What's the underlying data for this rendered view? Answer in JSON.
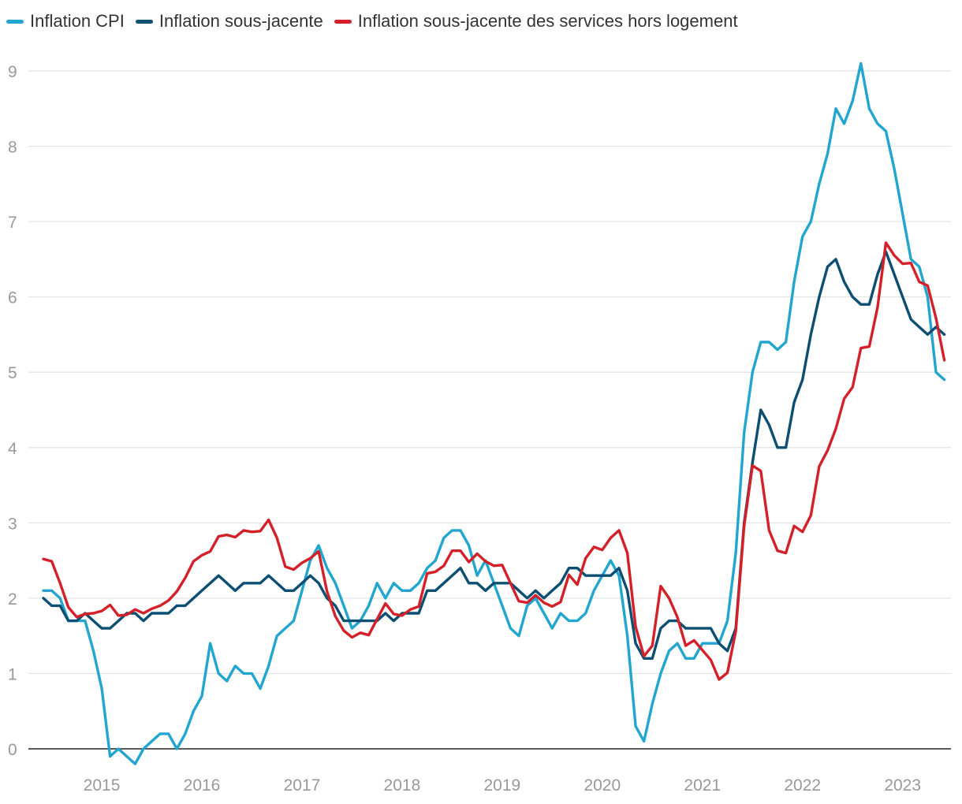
{
  "legend": [
    {
      "label": "Inflation CPI",
      "color": "#22A5CF"
    },
    {
      "label": "Inflation sous-jacente",
      "color": "#0D4E73"
    },
    {
      "label": "Inflation sous-jacente des services hors logement",
      "color": "#D42028"
    }
  ],
  "chart_data": {
    "type": "line",
    "x_start": "2014-06",
    "x_step": "month",
    "xlim": [
      "2014-06",
      "2023-05"
    ],
    "ylim": [
      0,
      9
    ],
    "yticks": [
      0,
      1,
      2,
      3,
      4,
      5,
      6,
      7,
      8,
      9
    ],
    "xticks": [
      "2015",
      "2016",
      "2017",
      "2018",
      "2019",
      "2020",
      "2021",
      "2022",
      "2023"
    ],
    "grid": true,
    "legend_position": "top-left",
    "series": [
      {
        "name": "Inflation CPI",
        "color": "#22A5CF",
        "start": "2014-06",
        "values": [
          2.1,
          2.1,
          2.0,
          1.7,
          1.7,
          1.7,
          1.3,
          0.8,
          -0.1,
          0.0,
          -0.1,
          -0.2,
          0.0,
          0.1,
          0.2,
          0.2,
          0.0,
          0.2,
          0.5,
          0.7,
          1.4,
          1.0,
          0.9,
          1.1,
          1.0,
          1.0,
          0.8,
          1.1,
          1.5,
          1.6,
          1.7,
          2.1,
          2.5,
          2.7,
          2.4,
          2.2,
          1.9,
          1.6,
          1.7,
          1.9,
          2.2,
          2.0,
          2.2,
          2.1,
          2.1,
          2.2,
          2.4,
          2.5,
          2.8,
          2.9,
          2.9,
          2.7,
          2.3,
          2.5,
          2.2,
          1.9,
          1.6,
          1.5,
          1.9,
          2.0,
          1.8,
          1.6,
          1.8,
          1.7,
          1.7,
          1.8,
          2.1,
          2.3,
          2.5,
          2.3,
          1.5,
          0.3,
          0.1,
          0.6,
          1.0,
          1.3,
          1.4,
          1.2,
          1.2,
          1.4,
          1.4,
          1.4,
          1.7,
          2.6,
          4.2,
          5.0,
          5.4,
          5.4,
          5.3,
          5.4,
          6.2,
          6.8,
          7.0,
          7.5,
          7.9,
          8.5,
          8.3,
          8.6,
          9.1,
          8.5,
          8.3,
          8.2,
          7.7,
          7.1,
          6.5,
          6.4,
          6.0,
          5.0,
          4.9
        ]
      },
      {
        "name": "Inflation sous-jacente",
        "color": "#0D4E73",
        "start": "2014-06",
        "values": [
          2.0,
          1.9,
          1.9,
          1.7,
          1.7,
          1.8,
          1.7,
          1.6,
          1.6,
          1.7,
          1.8,
          1.8,
          1.7,
          1.8,
          1.8,
          1.8,
          1.9,
          1.9,
          2.0,
          2.1,
          2.2,
          2.3,
          2.2,
          2.1,
          2.2,
          2.2,
          2.2,
          2.3,
          2.2,
          2.1,
          2.1,
          2.2,
          2.3,
          2.2,
          2.0,
          1.9,
          1.7,
          1.7,
          1.7,
          1.7,
          1.7,
          1.8,
          1.7,
          1.8,
          1.8,
          1.8,
          2.1,
          2.1,
          2.2,
          2.3,
          2.4,
          2.2,
          2.2,
          2.1,
          2.2,
          2.2,
          2.2,
          2.1,
          2.0,
          2.1,
          2.0,
          2.1,
          2.2,
          2.4,
          2.4,
          2.3,
          2.3,
          2.3,
          2.3,
          2.4,
          2.1,
          1.4,
          1.2,
          1.2,
          1.6,
          1.7,
          1.7,
          1.6,
          1.6,
          1.6,
          1.6,
          1.4,
          1.3,
          1.6,
          3.0,
          3.8,
          4.5,
          4.3,
          4.0,
          4.0,
          4.6,
          4.9,
          5.5,
          6.0,
          6.4,
          6.5,
          6.2,
          6.0,
          5.9,
          5.9,
          6.3,
          6.6,
          6.3,
          6.0,
          5.7,
          5.6,
          5.5,
          5.6,
          5.5
        ]
      },
      {
        "name": "Inflation sous-jacente des services hors logement",
        "color": "#D42028",
        "start": "2014-06",
        "values": [
          2.52,
          2.49,
          2.2,
          1.88,
          1.75,
          1.79,
          1.8,
          1.83,
          1.91,
          1.77,
          1.78,
          1.85,
          1.8,
          1.86,
          1.9,
          1.97,
          2.09,
          2.27,
          2.49,
          2.57,
          2.62,
          2.82,
          2.84,
          2.81,
          2.9,
          2.88,
          2.89,
          3.04,
          2.8,
          2.42,
          2.38,
          2.47,
          2.53,
          2.62,
          2.09,
          1.76,
          1.57,
          1.48,
          1.54,
          1.51,
          1.72,
          1.93,
          1.79,
          1.77,
          1.85,
          1.89,
          2.33,
          2.35,
          2.43,
          2.63,
          2.63,
          2.48,
          2.59,
          2.49,
          2.43,
          2.44,
          2.2,
          1.96,
          1.94,
          2.04,
          1.94,
          1.89,
          1.95,
          2.31,
          2.18,
          2.53,
          2.68,
          2.64,
          2.8,
          2.9,
          2.6,
          1.62,
          1.23,
          1.37,
          2.16,
          2.0,
          1.75,
          1.37,
          1.44,
          1.31,
          1.18,
          0.92,
          1.01,
          1.56,
          2.96,
          3.76,
          3.69,
          2.9,
          2.63,
          2.6,
          2.96,
          2.88,
          3.1,
          3.75,
          3.96,
          4.25,
          4.65,
          4.8,
          5.32,
          5.34,
          5.86,
          6.72,
          6.55,
          6.44,
          6.45,
          6.2,
          6.15,
          5.72,
          5.16
        ]
      }
    ]
  }
}
